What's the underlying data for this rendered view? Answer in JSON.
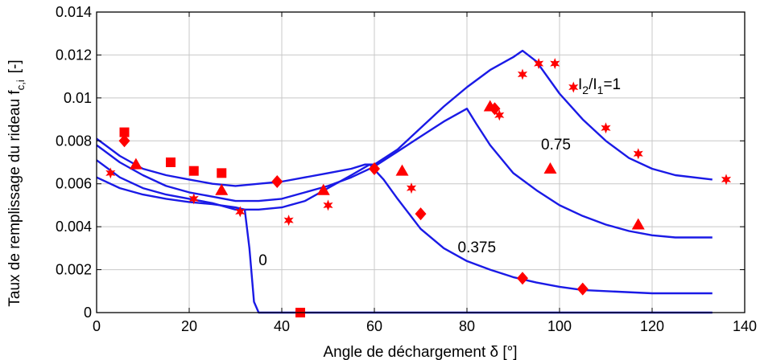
{
  "chart_data": {
    "type": "line",
    "xlabel": "Angle de déchargement δ [°]",
    "ylabel_main": "Taux de remplissage du rideau f",
    "ylabel_sub": "c,i",
    "ylabel_unit": "[-]",
    "xlim": [
      0,
      140
    ],
    "ylim": [
      0,
      0.014
    ],
    "x_ticks": [
      0,
      20,
      40,
      60,
      80,
      100,
      120,
      140
    ],
    "y_ticks": [
      0,
      0.002,
      0.004,
      0.006,
      0.008,
      0.01,
      0.012,
      0.014
    ],
    "y_tick_labels": [
      "0",
      "0.002",
      "0.004",
      "0.006",
      "0.008",
      "0.01",
      "0.012",
      "0.014"
    ],
    "grid": true,
    "line_color": "#1a1ae6",
    "marker_color": "#ff0000",
    "series": [
      {
        "label": "0",
        "points": [
          [
            0,
            0.0063
          ],
          [
            5,
            0.0058
          ],
          [
            10,
            0.0055
          ],
          [
            15,
            0.0053
          ],
          [
            20,
            0.00515
          ],
          [
            25,
            0.00505
          ],
          [
            30,
            0.0049
          ],
          [
            32,
            0.0048
          ],
          [
            33,
            0.003
          ],
          [
            34,
            0.0005
          ],
          [
            35,
            0.0
          ],
          [
            40,
            0.0
          ],
          [
            60,
            0.0
          ],
          [
            80,
            0.0
          ],
          [
            100,
            0.0
          ],
          [
            120,
            0.0
          ],
          [
            133,
            0.0
          ]
        ]
      },
      {
        "label": "0.375",
        "points": [
          [
            0,
            0.0071
          ],
          [
            5,
            0.0063
          ],
          [
            10,
            0.0058
          ],
          [
            15,
            0.0055
          ],
          [
            20,
            0.0053
          ],
          [
            25,
            0.0051
          ],
          [
            30,
            0.0048
          ],
          [
            35,
            0.0048
          ],
          [
            40,
            0.0049
          ],
          [
            45,
            0.0052
          ],
          [
            50,
            0.0058
          ],
          [
            55,
            0.0064
          ],
          [
            59,
            0.0069
          ],
          [
            62,
            0.0062
          ],
          [
            65,
            0.0053
          ],
          [
            70,
            0.0039
          ],
          [
            75,
            0.003
          ],
          [
            80,
            0.0024
          ],
          [
            85,
            0.002
          ],
          [
            90,
            0.00165
          ],
          [
            95,
            0.0014
          ],
          [
            100,
            0.0012
          ],
          [
            105,
            0.00105
          ],
          [
            110,
            0.001
          ],
          [
            120,
            0.0009
          ],
          [
            133,
            0.0009
          ]
        ]
      },
      {
        "label": "0.75",
        "points": [
          [
            0,
            0.0078
          ],
          [
            5,
            0.007
          ],
          [
            10,
            0.0064
          ],
          [
            15,
            0.0059
          ],
          [
            20,
            0.0056
          ],
          [
            25,
            0.0054
          ],
          [
            30,
            0.0052
          ],
          [
            35,
            0.0052
          ],
          [
            40,
            0.0053
          ],
          [
            45,
            0.0056
          ],
          [
            50,
            0.0059
          ],
          [
            55,
            0.0063
          ],
          [
            60,
            0.0068
          ],
          [
            65,
            0.0075
          ],
          [
            70,
            0.0082
          ],
          [
            75,
            0.0089
          ],
          [
            80,
            0.0095
          ],
          [
            82,
            0.0088
          ],
          [
            85,
            0.0078
          ],
          [
            90,
            0.0065
          ],
          [
            95,
            0.0057
          ],
          [
            100,
            0.005
          ],
          [
            105,
            0.0045
          ],
          [
            110,
            0.0041
          ],
          [
            115,
            0.0038
          ],
          [
            120,
            0.0036
          ],
          [
            125,
            0.0035
          ],
          [
            133,
            0.0035
          ]
        ]
      },
      {
        "label": "I2/I1=1",
        "points": [
          [
            0,
            0.0081
          ],
          [
            5,
            0.0073
          ],
          [
            10,
            0.0067
          ],
          [
            15,
            0.0064
          ],
          [
            20,
            0.0062
          ],
          [
            25,
            0.006
          ],
          [
            30,
            0.0059
          ],
          [
            35,
            0.006
          ],
          [
            40,
            0.0061
          ],
          [
            45,
            0.0063
          ],
          [
            50,
            0.0065
          ],
          [
            55,
            0.0067
          ],
          [
            58,
            0.0069
          ],
          [
            60,
            0.0069
          ],
          [
            65,
            0.0076
          ],
          [
            70,
            0.0086
          ],
          [
            75,
            0.0096
          ],
          [
            80,
            0.0105
          ],
          [
            85,
            0.0113
          ],
          [
            90,
            0.0119
          ],
          [
            92,
            0.0122
          ],
          [
            95,
            0.0117
          ],
          [
            100,
            0.0102
          ],
          [
            105,
            0.009
          ],
          [
            110,
            0.008
          ],
          [
            115,
            0.0072
          ],
          [
            120,
            0.0067
          ],
          [
            125,
            0.0064
          ],
          [
            133,
            0.0062
          ]
        ]
      }
    ],
    "markers": {
      "square": [
        [
          6,
          0.0084
        ],
        [
          16,
          0.007
        ],
        [
          21,
          0.0066
        ],
        [
          27,
          0.0065
        ],
        [
          44,
          0.0
        ]
      ],
      "triangle": [
        [
          8.5,
          0.0069
        ],
        [
          27,
          0.0057
        ],
        [
          49,
          0.0057
        ],
        [
          66,
          0.0066
        ],
        [
          85,
          0.0096
        ],
        [
          98,
          0.0067
        ],
        [
          117,
          0.0041
        ]
      ],
      "diamond": [
        [
          6,
          0.008
        ],
        [
          39,
          0.0061
        ],
        [
          60,
          0.0067
        ],
        [
          70,
          0.0046
        ],
        [
          86,
          0.0095
        ],
        [
          92,
          0.0016
        ],
        [
          105,
          0.0011
        ]
      ],
      "star": [
        [
          3,
          0.0065
        ],
        [
          21,
          0.0053
        ],
        [
          31,
          0.0047
        ],
        [
          41.5,
          0.0043
        ],
        [
          50,
          0.005
        ],
        [
          68,
          0.0058
        ],
        [
          87,
          0.0092
        ],
        [
          92,
          0.0111
        ],
        [
          95.5,
          0.0116
        ],
        [
          99,
          0.0116
        ],
        [
          103,
          0.0105
        ],
        [
          110,
          0.0086
        ],
        [
          117,
          0.0074
        ],
        [
          136,
          0.0062
        ]
      ]
    },
    "annotations": [
      {
        "series_label": "I2/I1=1",
        "text_main": "I",
        "sub1": "2",
        "mid": "/I",
        "sub2": "1",
        "tail": "=1",
        "x": 104,
        "y": 0.0104
      },
      {
        "text": "0.75",
        "x": 96,
        "y": 0.0076
      },
      {
        "text": "0.375",
        "x": 78,
        "y": 0.0028
      },
      {
        "text": "0",
        "x": 35,
        "y": 0.0022
      }
    ]
  }
}
